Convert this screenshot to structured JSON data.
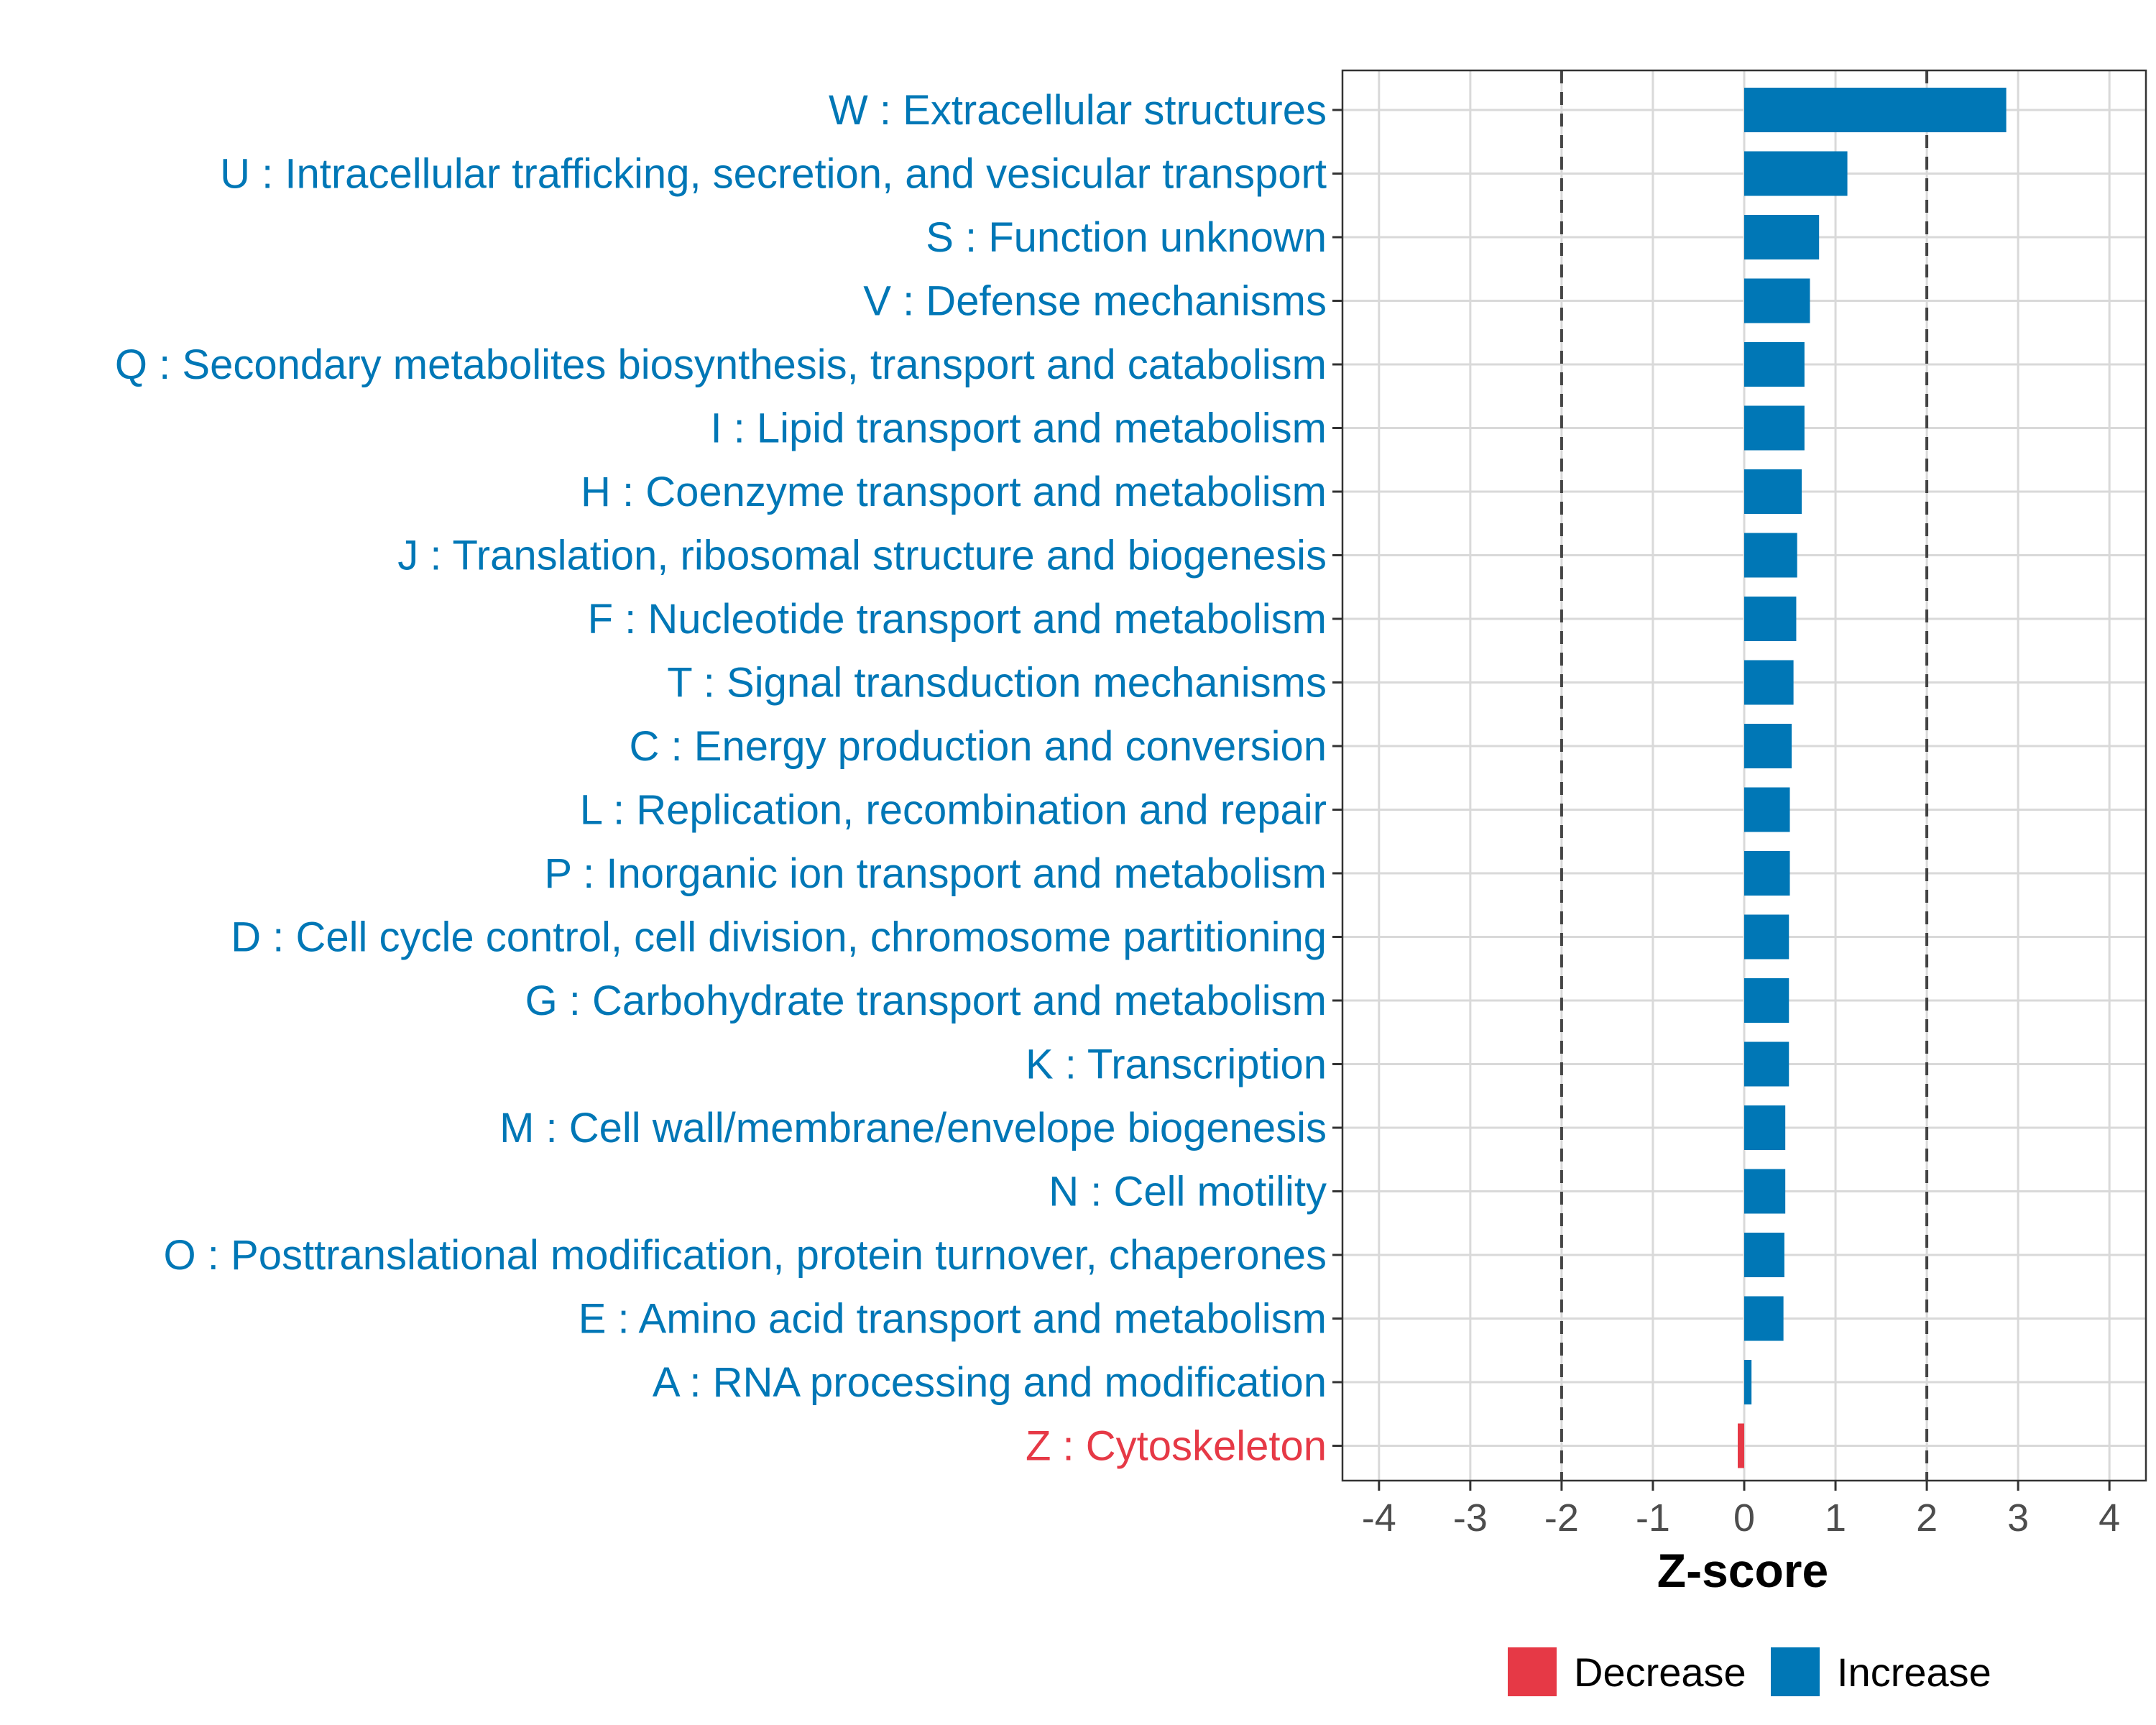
{
  "chart_data": {
    "type": "bar",
    "orientation": "horizontal",
    "title": "",
    "xlabel": "Z-score",
    "ylabel": "",
    "xlim": [
      -4.4,
      4.4
    ],
    "xticks": [
      -4,
      -3,
      -2,
      -1,
      0,
      1,
      2,
      3,
      4
    ],
    "reference_lines": [
      -2,
      2
    ],
    "grid": true,
    "legend_position": "bottom",
    "colors": {
      "Decrease": "#e63946",
      "Increase": "#0077b6"
    },
    "legend": [
      {
        "label": "Decrease",
        "color": "#e63946"
      },
      {
        "label": "Increase",
        "color": "#0077b6"
      }
    ],
    "categories": [
      "W : Extracellular structures",
      "U : Intracellular trafficking, secretion, and vesicular transport",
      "S : Function unknown",
      "V : Defense mechanisms",
      "Q : Secondary metabolites biosynthesis, transport and catabolism",
      "I : Lipid transport and metabolism",
      "H : Coenzyme transport and metabolism",
      "J : Translation, ribosomal structure and biogenesis",
      "F : Nucleotide transport and metabolism",
      "T : Signal transduction mechanisms",
      "C : Energy production and conversion",
      "L : Replication, recombination and repair",
      "P : Inorganic ion transport and metabolism",
      "D : Cell cycle control, cell division, chromosome partitioning",
      "G : Carbohydrate transport and metabolism",
      "K : Transcription",
      "M : Cell wall/membrane/envelope biogenesis",
      "N : Cell motility",
      "O : Posttranslational modification, protein turnover, chaperones",
      "E : Amino acid transport and metabolism",
      "A : RNA processing and modification",
      "Z : Cytoskeleton"
    ],
    "values": [
      2.87,
      1.13,
      0.82,
      0.72,
      0.66,
      0.66,
      0.63,
      0.58,
      0.57,
      0.54,
      0.52,
      0.5,
      0.5,
      0.49,
      0.49,
      0.49,
      0.45,
      0.45,
      0.44,
      0.43,
      0.08,
      -0.05
    ],
    "direction": [
      "Increase",
      "Increase",
      "Increase",
      "Increase",
      "Increase",
      "Increase",
      "Increase",
      "Increase",
      "Increase",
      "Increase",
      "Increase",
      "Increase",
      "Increase",
      "Increase",
      "Increase",
      "Increase",
      "Increase",
      "Increase",
      "Increase",
      "Increase",
      "Increase",
      "Decrease"
    ]
  }
}
